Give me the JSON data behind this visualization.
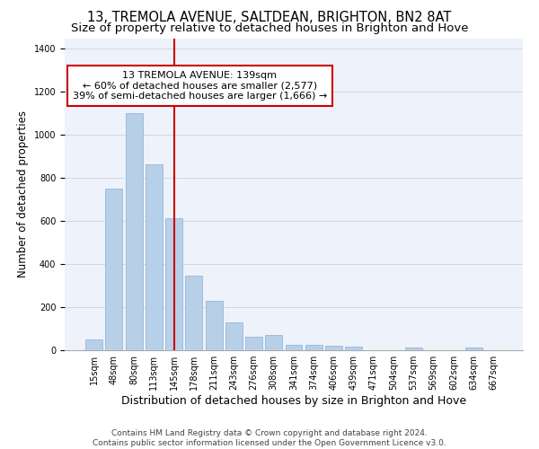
{
  "title_line1": "13, TREMOLA AVENUE, SALTDEAN, BRIGHTON, BN2 8AT",
  "title_line2": "Size of property relative to detached houses in Brighton and Hove",
  "xlabel": "Distribution of detached houses by size in Brighton and Hove",
  "ylabel": "Number of detached properties",
  "bar_labels": [
    "15sqm",
    "48sqm",
    "80sqm",
    "113sqm",
    "145sqm",
    "178sqm",
    "211sqm",
    "243sqm",
    "276sqm",
    "308sqm",
    "341sqm",
    "374sqm",
    "406sqm",
    "439sqm",
    "471sqm",
    "504sqm",
    "537sqm",
    "569sqm",
    "602sqm",
    "634sqm",
    "667sqm"
  ],
  "bar_values": [
    50,
    750,
    1100,
    865,
    615,
    345,
    228,
    130,
    62,
    70,
    25,
    25,
    20,
    15,
    0,
    0,
    12,
    0,
    0,
    12,
    0
  ],
  "bar_color": "#b8cfe8",
  "bar_edge_color": "#8aafd4",
  "vline_color": "#cc0000",
  "vline_position": 4.0,
  "ylim": [
    0,
    1450
  ],
  "yticks": [
    0,
    200,
    400,
    600,
    800,
    1000,
    1200,
    1400
  ],
  "annotation_line1": "13 TREMOLA AVENUE: 139sqm",
  "annotation_line2": "← 60% of detached houses are smaller (2,577)",
  "annotation_line3": "39% of semi-detached houses are larger (1,666) →",
  "annotation_box_color": "#ffffff",
  "annotation_box_edge": "#cc0000",
  "footer_line1": "Contains HM Land Registry data © Crown copyright and database right 2024.",
  "footer_line2": "Contains public sector information licensed under the Open Government Licence v3.0.",
  "background_color": "#eef2fa",
  "grid_color": "#d0d8e8",
  "title_fontsize": 10.5,
  "subtitle_fontsize": 9.5,
  "ylabel_fontsize": 8.5,
  "xlabel_fontsize": 9,
  "tick_fontsize": 7,
  "annotation_fontsize": 8,
  "footer_fontsize": 6.5
}
